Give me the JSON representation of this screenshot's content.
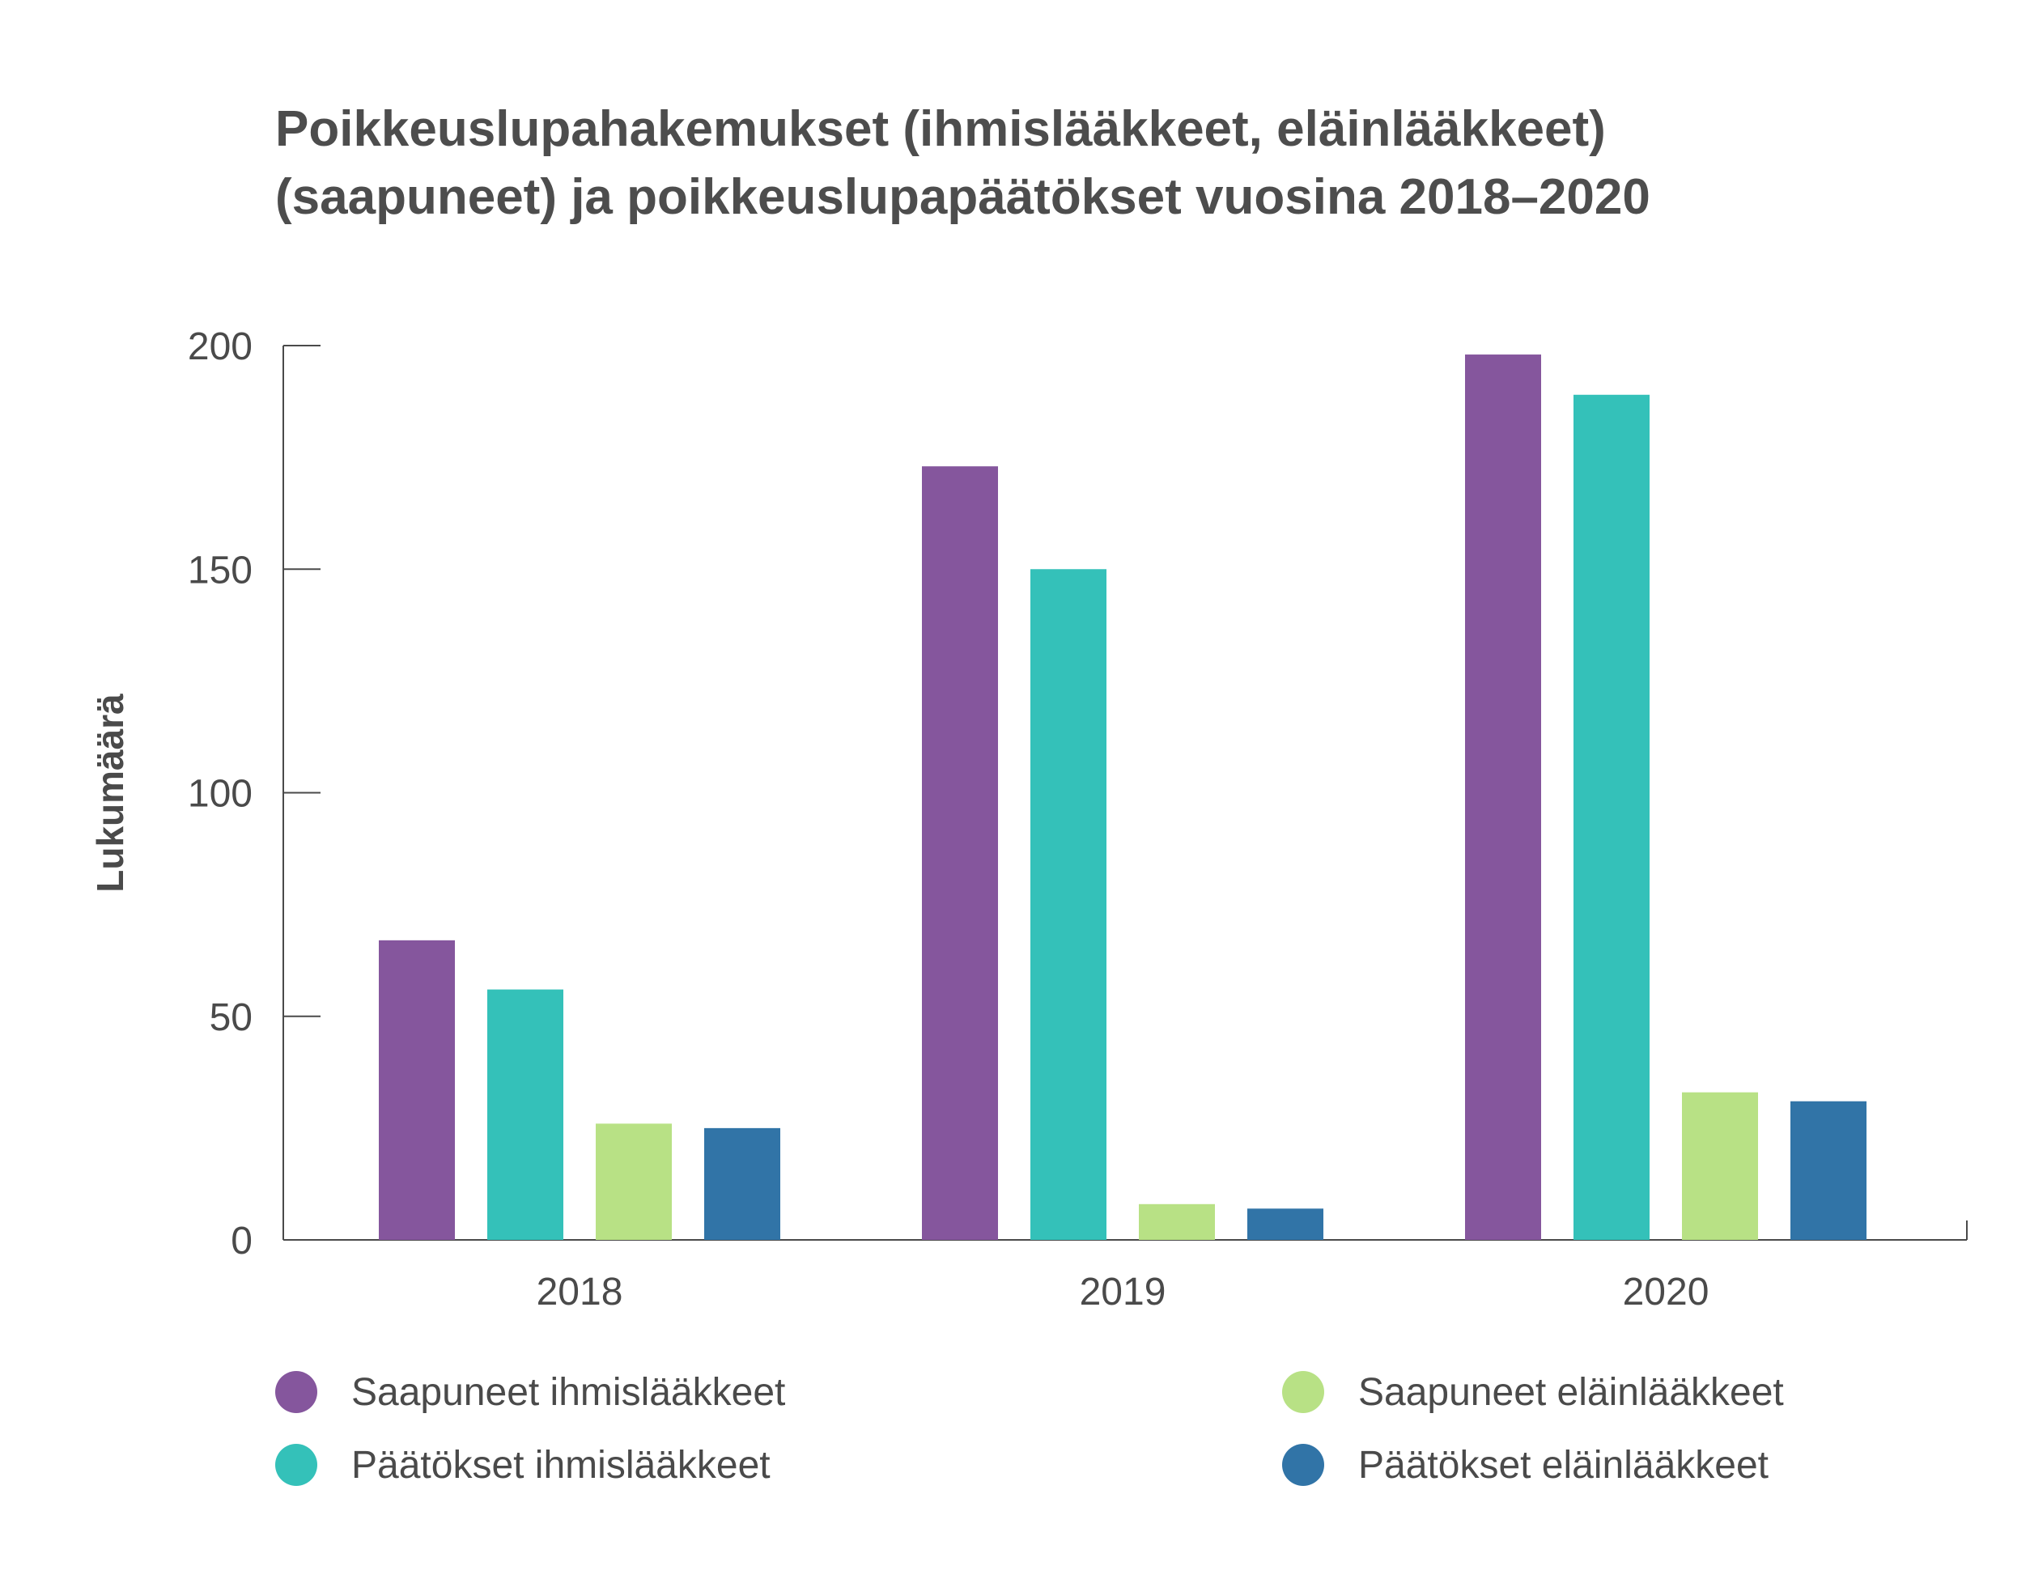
{
  "title_lines": [
    "Poikkeuslupahakemukset (ihmislääkkeet, eläinlääkkeet)",
    "(saapuneet) ja poikkeuslupapäätökset vuosina 2018–2020"
  ],
  "chart_data": {
    "type": "bar",
    "title": "Poikkeuslupahakemukset (ihmislääkkeet, eläinlääkkeet) (saapuneet) ja poikkeuslupapäätökset vuosina 2018–2020",
    "xlabel": "",
    "ylabel": "Lukumäärä",
    "ylim": [
      0,
      200
    ],
    "yticks": [
      0,
      50,
      100,
      150,
      200
    ],
    "categories": [
      "2018",
      "2019",
      "2020"
    ],
    "series": [
      {
        "name": "Saapuneet ihmislääkkeet",
        "color": "#85569d",
        "values": [
          67,
          173,
          198
        ]
      },
      {
        "name": "Päätökset ihmislääkkeet",
        "color": "#34c1b9",
        "values": [
          56,
          150,
          189
        ]
      },
      {
        "name": "Saapuneet eläinlääkkeet",
        "color": "#b8e185",
        "values": [
          26,
          8,
          33
        ]
      },
      {
        "name": "Päätökset eläinlääkkeet",
        "color": "#3174a7",
        "values": [
          25,
          7,
          31
        ]
      }
    ],
    "grid": false,
    "legend_position": "bottom"
  }
}
